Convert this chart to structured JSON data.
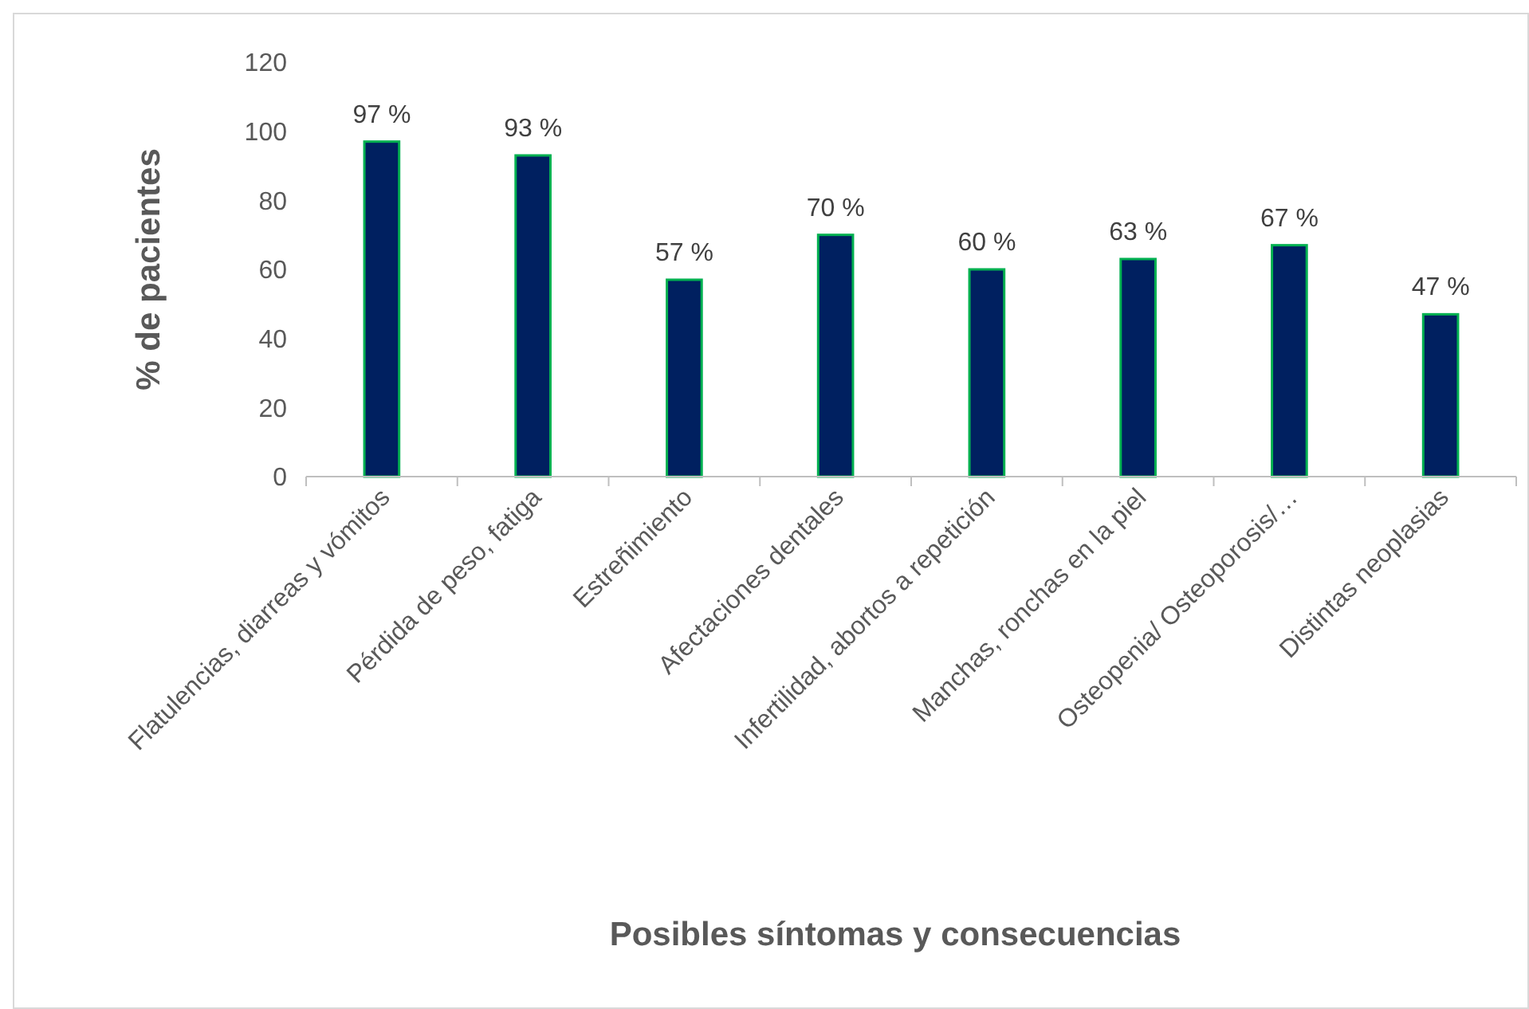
{
  "chart_data": {
    "type": "bar",
    "xlabel": "Posibles síntomas y consecuencias",
    "ylabel": "% de pacientes",
    "categories": [
      "Flatulencias, diarreas y vómitos",
      "Pérdida de peso, fatiga",
      "Estreñimiento",
      "Afectaciones dentales",
      "Infertilidad, abortos a repetición",
      "Manchas, ronchas en la piel",
      "Osteopenia/ Osteoporosis/…",
      "Distintas neoplasias"
    ],
    "values": [
      97,
      93,
      57,
      70,
      60,
      63,
      67,
      47
    ],
    "value_labels": [
      "97 %",
      "93 %",
      "57 %",
      "70 %",
      "60 %",
      "63 %",
      "67 %",
      "47 %"
    ],
    "color": "#002060",
    "ylim": [
      0,
      120
    ],
    "yticks": [
      0,
      20,
      40,
      60,
      80,
      100,
      120
    ],
    "grid": false
  }
}
